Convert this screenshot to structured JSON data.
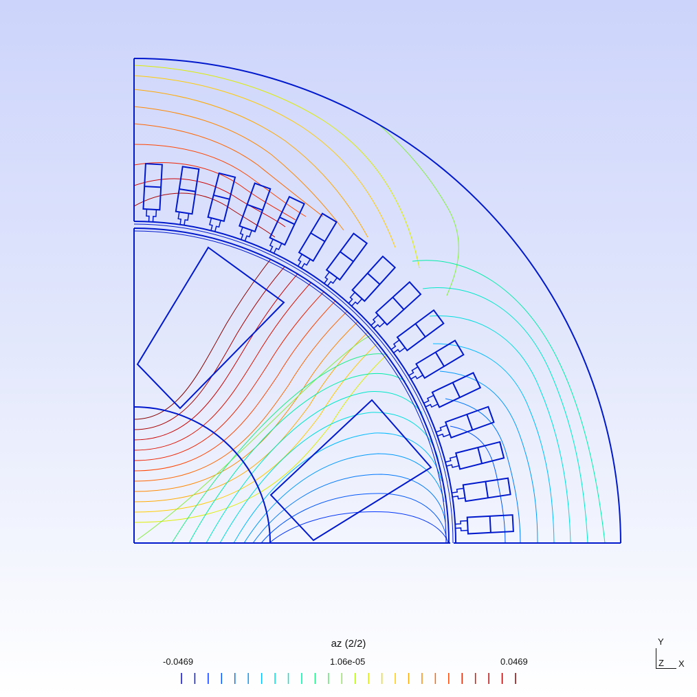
{
  "legend": {
    "title": "az (2/2)",
    "min_label": "-0.0469",
    "mid_label": "1.06e-05",
    "max_label": "0.0469",
    "min_value": -0.0469,
    "mid_value": 1.06e-05,
    "max_value": 0.0469,
    "levels": 26,
    "colors": [
      "#0000ff",
      "#0014ff",
      "#0033ff",
      "#0055ff",
      "#0077ff",
      "#0099ff",
      "#00bbff",
      "#00dddd",
      "#00e8c8",
      "#00eea8",
      "#22ee88",
      "#55ee66",
      "#88ee44",
      "#bbee22",
      "#ddee00",
      "#eedd00",
      "#ffcc00",
      "#ffaa00",
      "#ff8800",
      "#ff6600",
      "#ff4400",
      "#ee2200",
      "#dd1100",
      "#cc0000",
      "#aa0000",
      "#880000"
    ]
  },
  "axes_triad": {
    "y": "Y",
    "z": "Z",
    "x": "X"
  },
  "colors": {
    "outline": "#0018cc",
    "background_top": "#ccd4fb",
    "background_bottom": "#ffffff"
  }
}
